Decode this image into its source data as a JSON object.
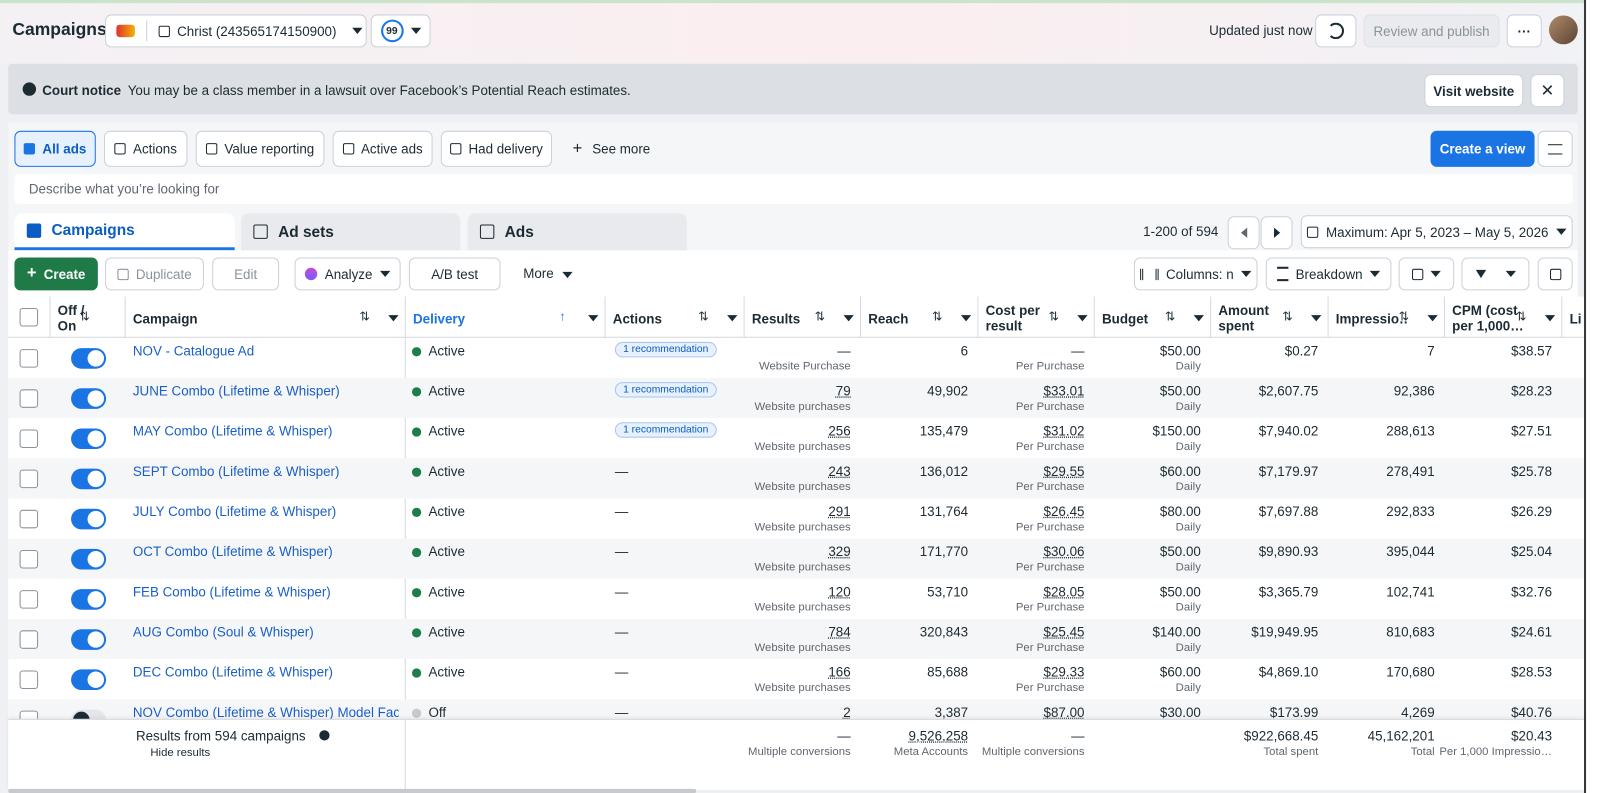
{
  "header": {
    "title": "Campaigns",
    "account": "Christ (243565174150900)",
    "score": "99",
    "status": "Updated just now",
    "publish": "Review and publish"
  },
  "notice": {
    "label": "Court notice",
    "text": "You may be a class member in a lawsuit over Facebook’s Potential Reach estimates.",
    "button": "Visit website"
  },
  "filters": {
    "items": [
      "All ads",
      "Actions",
      "Value reporting",
      "Active ads",
      "Had delivery"
    ],
    "selected": 0,
    "more": "See more",
    "create_view": "Create a view"
  },
  "search": {
    "placeholder": "Describe what you’re looking for"
  },
  "tabs": {
    "items": [
      "Campaigns",
      "Ad sets",
      "Ads"
    ],
    "active": 0,
    "pagination": "1-200 of 594",
    "date_range": "Maximum: Apr 5, 2023 – May 5, 2026"
  },
  "toolbar": {
    "create": "Create",
    "duplicate": "Duplicate",
    "edit": "Edit",
    "analyze": "Analyze",
    "ab_test": "A/B test",
    "more": "More",
    "columns": "Columns: n",
    "breakdown": "Breakdown"
  },
  "table": {
    "columns": [
      "Off / On",
      "Campaign",
      "Delivery",
      "Actions",
      "Results",
      "Reach",
      "Cost per result",
      "Budget",
      "Amount spent",
      "Impressio…",
      "CPM (cost per 1,000…",
      "Li"
    ],
    "sorted_column": 2,
    "rows": [
      {
        "on": true,
        "name": "NOV - Catalogue Ad",
        "delivery": "Active",
        "actions": "1 recommendation",
        "results": "—",
        "results_type": "Website Purchase",
        "reach": "6",
        "cost_per_result": "—",
        "cost_type": "Per Purchase",
        "budget": "$50.00",
        "budget_type": "Daily",
        "amount_spent": "$0.27",
        "impressions": "7",
        "cpm": "$38.57"
      },
      {
        "on": true,
        "name": "JUNE Combo (Lifetime & Whisper)",
        "delivery": "Active",
        "actions": "1 recommendation",
        "results": "79",
        "results_type": "Website purchases",
        "reach": "49,902",
        "cost_per_result": "$33.01",
        "cost_type": "Per Purchase",
        "budget": "$50.00",
        "budget_type": "Daily",
        "amount_spent": "$2,607.75",
        "impressions": "92,386",
        "cpm": "$28.23"
      },
      {
        "on": true,
        "name": "MAY Combo (Lifetime & Whisper)",
        "delivery": "Active",
        "actions": "1 recommendation",
        "results": "256",
        "results_type": "Website purchases",
        "reach": "135,479",
        "cost_per_result": "$31.02",
        "cost_type": "Per Purchase",
        "budget": "$150.00",
        "budget_type": "Daily",
        "amount_spent": "$7,940.02",
        "impressions": "288,613",
        "cpm": "$27.51"
      },
      {
        "on": true,
        "name": "SEPT Combo (Lifetime & Whisper)",
        "delivery": "Active",
        "actions": "—",
        "results": "243",
        "results_type": "Website purchases",
        "reach": "136,012",
        "cost_per_result": "$29.55",
        "cost_type": "Per Purchase",
        "budget": "$60.00",
        "budget_type": "Daily",
        "amount_spent": "$7,179.97",
        "impressions": "278,491",
        "cpm": "$25.78"
      },
      {
        "on": true,
        "name": "JULY Combo (Lifetime & Whisper)",
        "delivery": "Active",
        "actions": "—",
        "results": "291",
        "results_type": "Website purchases",
        "reach": "131,764",
        "cost_per_result": "$26.45",
        "cost_type": "Per Purchase",
        "budget": "$80.00",
        "budget_type": "Daily",
        "amount_spent": "$7,697.88",
        "impressions": "292,833",
        "cpm": "$26.29"
      },
      {
        "on": true,
        "name": "OCT Combo (Lifetime & Whisper)",
        "delivery": "Active",
        "actions": "—",
        "results": "329",
        "results_type": "Website purchases",
        "reach": "171,770",
        "cost_per_result": "$30.06",
        "cost_type": "Per Purchase",
        "budget": "$50.00",
        "budget_type": "Daily",
        "amount_spent": "$9,890.93",
        "impressions": "395,044",
        "cpm": "$25.04"
      },
      {
        "on": true,
        "name": "FEB Combo (Lifetime & Whisper)",
        "delivery": "Active",
        "actions": "—",
        "results": "120",
        "results_type": "Website purchases",
        "reach": "53,710",
        "cost_per_result": "$28.05",
        "cost_type": "Per Purchase",
        "budget": "$50.00",
        "budget_type": "Daily",
        "amount_spent": "$3,365.79",
        "impressions": "102,741",
        "cpm": "$32.76"
      },
      {
        "on": true,
        "name": "AUG Combo (Soul & Whisper)",
        "delivery": "Active",
        "actions": "—",
        "results": "784",
        "results_type": "Website purchases",
        "reach": "320,843",
        "cost_per_result": "$25.45",
        "cost_type": "Per Purchase",
        "budget": "$140.00",
        "budget_type": "Daily",
        "amount_spent": "$19,949.95",
        "impressions": "810,683",
        "cpm": "$24.61"
      },
      {
        "on": true,
        "name": "DEC Combo (Lifetime & Whisper)",
        "delivery": "Active",
        "actions": "—",
        "results": "166",
        "results_type": "Website purchases",
        "reach": "85,688",
        "cost_per_result": "$29.33",
        "cost_type": "Per Purchase",
        "budget": "$60.00",
        "budget_type": "Daily",
        "amount_spent": "$4,869.10",
        "impressions": "170,680",
        "cpm": "$28.53"
      },
      {
        "on": false,
        "name": "NOV Combo (Lifetime & Whisper) Model Face",
        "delivery": "Off",
        "actions": "—",
        "results": "2",
        "reach": "3,387",
        "cost_per_result": "$87.00",
        "budget": "$30.00",
        "amount_spent": "$173.99",
        "impressions": "4,269",
        "cpm": "$40.76"
      }
    ],
    "footer": {
      "label": "Results from 594 campaigns",
      "hide": "Hide results",
      "results": "—",
      "results_type": "Multiple conversions",
      "reach": "9,526,258",
      "reach_type": "Meta Accounts",
      "cost_per_result": "—",
      "cost_type": "Multiple conversions",
      "amount_spent": "$922,668.45",
      "spent_type": "Total spent",
      "impressions": "45,162,201",
      "impressions_type": "Total",
      "cpm": "$20.43",
      "cpm_type": "Per 1,000 Impressio…"
    }
  }
}
